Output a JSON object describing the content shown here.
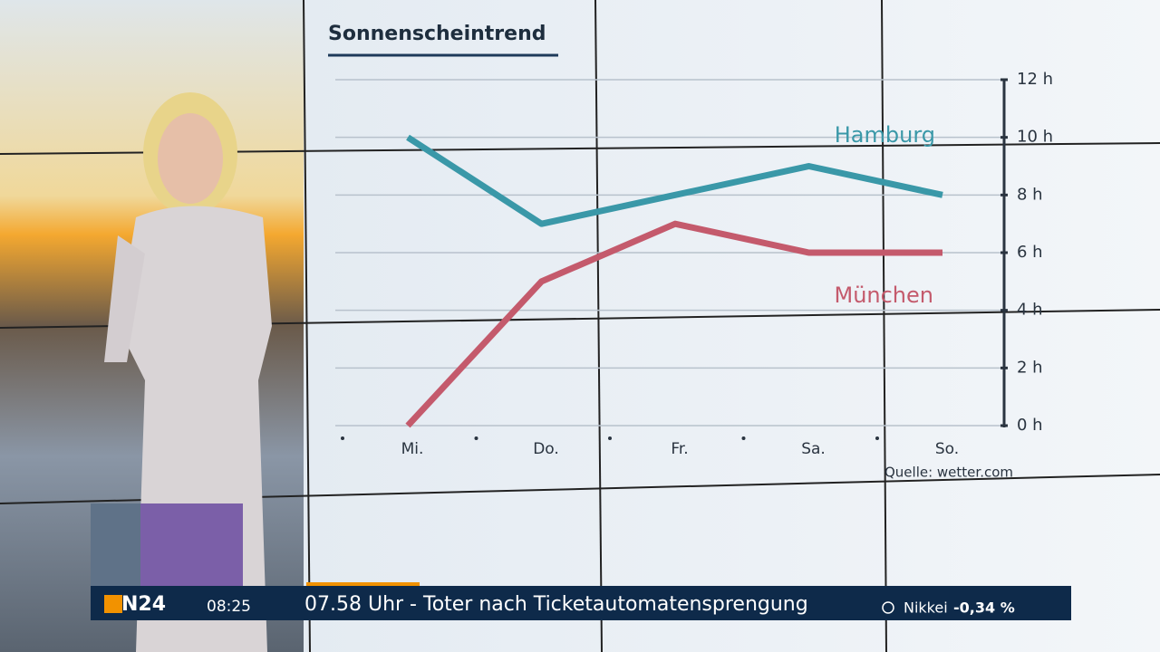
{
  "chart_data": {
    "type": "line",
    "title": "Sonnenscheintrend",
    "categories": [
      "Mi.",
      "Do.",
      "Fr.",
      "Sa.",
      "So."
    ],
    "series": [
      {
        "name": "Hamburg",
        "color": "#3a98a8",
        "values": [
          10,
          7,
          8,
          9,
          8
        ]
      },
      {
        "name": "München",
        "color": "#c45a6c",
        "values": [
          0,
          5,
          7,
          6,
          6
        ]
      }
    ],
    "ylim": [
      0,
      12
    ],
    "yticks": [
      {
        "value": 0,
        "label": "0 h"
      },
      {
        "value": 2,
        "label": "2 h"
      },
      {
        "value": 4,
        "label": "4 h"
      },
      {
        "value": 6,
        "label": "6 h"
      },
      {
        "value": 8,
        "label": "8 h"
      },
      {
        "value": 10,
        "label": "10 h"
      },
      {
        "value": 12,
        "label": "12 h"
      }
    ],
    "grid": true,
    "source": "Quelle: wetter.com"
  },
  "ticker": {
    "logo": "N24",
    "time": "08:25",
    "headline": "07.58 Uhr - Toter nach Ticketautomatensprengung",
    "market": "Nikkei",
    "change": "-0,34 %"
  }
}
